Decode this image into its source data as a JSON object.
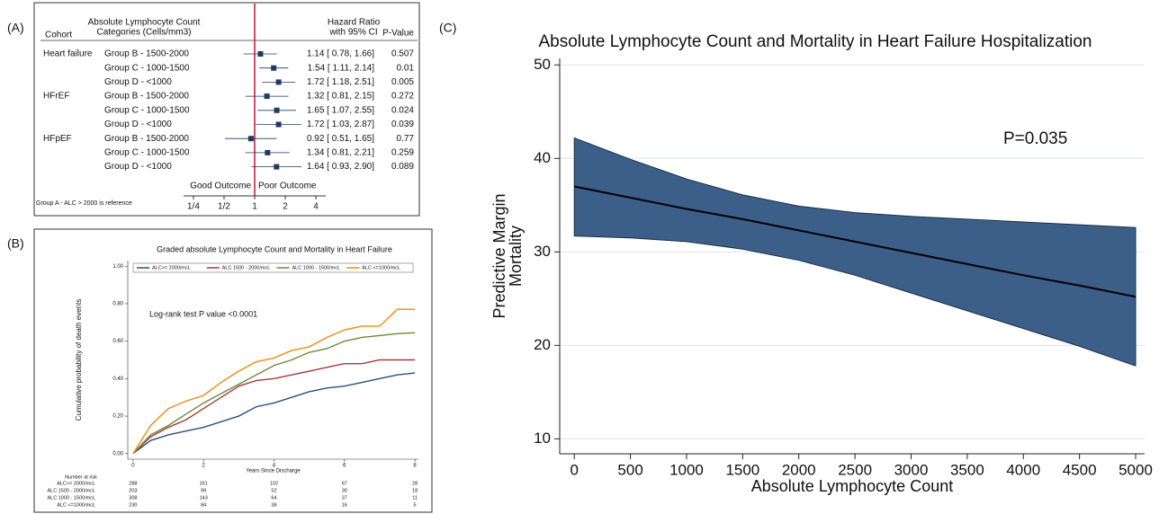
{
  "chart_data": [
    {
      "type": "forest",
      "panel": "(A)",
      "headers": {
        "cohort": "Cohort",
        "category_lines": [
          "Absolute Lymphocyte Count",
          "Categories (Cells/mm3)"
        ],
        "hr_lines": [
          "Hazard Ratio",
          "with 95% CI"
        ],
        "p": "P-Value"
      },
      "cohorts": [
        "Heart failure",
        null,
        null,
        "HFrEF",
        null,
        null,
        "HFpEF",
        null,
        null
      ],
      "categories": [
        "Group B - 1500-2000",
        "Group C - 1000-1500",
        "Group D - <1000",
        "Group B - 1500-2000",
        "Group C - 1000-1500",
        "Group D - <1000",
        "Group B - 1500-2000",
        "Group C - 1000-1500",
        "Group D - <1000"
      ],
      "values": [
        1.14,
        1.54,
        1.72,
        1.32,
        1.65,
        1.72,
        0.92,
        1.34,
        1.64
      ],
      "lower": [
        0.78,
        1.11,
        1.18,
        0.81,
        1.07,
        1.03,
        0.51,
        0.81,
        0.93
      ],
      "upper": [
        1.66,
        2.14,
        2.51,
        2.15,
        2.55,
        2.87,
        1.65,
        2.21,
        2.9
      ],
      "value_labels": [
        "1.14 [ 0.78, 1.66]",
        "1.54 [ 1.11, 2.14]",
        "1.72 [ 1.18, 2.51]",
        "1.32 [ 0.81, 2.15]",
        "1.65 [ 1.07, 2.55]",
        "1.72 [ 1.03, 2.87]",
        "0.92 [ 0.51, 1.65]",
        "1.34 [ 0.81, 2.21]",
        "1.64 [ 0.93, 2.90]"
      ],
      "p_values": [
        0.507,
        0.01,
        0.005,
        0.272,
        0.024,
        0.039,
        0.77,
        0.259,
        0.089
      ],
      "xscale": "log",
      "xlim": [
        0.2,
        5
      ],
      "xticks": [
        {
          "value": 0.25,
          "label": "1/4"
        },
        {
          "value": 0.5,
          "label": "1/2"
        },
        1,
        2,
        4
      ],
      "reference_line": 1,
      "color": "#1f3b63",
      "reference_color": "#c0143c",
      "left_label": "Good Outcome",
      "right_label": "Poor Outcome",
      "footnote": "Group A - ALC > 2000 is reference"
    },
    {
      "type": "line",
      "panel": "(B)",
      "title": "Graded absolute Lymphocyte Count and Mortality in Heart Failure",
      "y_label": "Cumulative probability of death events",
      "x_label": "Years Since Discharge",
      "annotation": "Log-rank test P value <0.0001",
      "x": [
        0,
        0.5,
        1,
        1.5,
        2,
        2.5,
        3,
        3.5,
        4,
        4.5,
        5,
        5.5,
        6,
        6.5,
        7,
        7.5,
        8
      ],
      "series": [
        {
          "name": "ALC>= 2000/mcL",
          "color": "#2b4f7e",
          "values": [
            0,
            0.07,
            0.1,
            0.12,
            0.14,
            0.17,
            0.2,
            0.25,
            0.27,
            0.3,
            0.33,
            0.35,
            0.36,
            0.38,
            0.4,
            0.42,
            0.43
          ]
        },
        {
          "name": "ALC 1500 - 2000/mcL",
          "color": "#a23b3b",
          "values": [
            0,
            0.09,
            0.14,
            0.18,
            0.24,
            0.3,
            0.36,
            0.39,
            0.4,
            0.42,
            0.44,
            0.46,
            0.48,
            0.48,
            0.5,
            0.5,
            0.5
          ]
        },
        {
          "name": "ALC 1000 - 1500/mcL",
          "color": "#6b8a35",
          "values": [
            0,
            0.1,
            0.15,
            0.21,
            0.27,
            0.32,
            0.37,
            0.42,
            0.47,
            0.5,
            0.54,
            0.56,
            0.6,
            0.62,
            0.63,
            0.64,
            0.645
          ]
        },
        {
          "name": "ALC <=1000/mcL",
          "color": "#f08a12",
          "values": [
            0,
            0.15,
            0.24,
            0.28,
            0.31,
            0.38,
            0.44,
            0.49,
            0.51,
            0.55,
            0.57,
            0.62,
            0.66,
            0.68,
            0.68,
            0.77,
            0.77
          ]
        }
      ],
      "xlim": [
        -0.15,
        8.1
      ],
      "xticks": [
        0,
        2,
        4,
        6,
        8
      ],
      "ylim": [
        -0.03,
        1.03
      ],
      "yticks": [
        {
          "value": 0,
          "label": "0.00"
        },
        {
          "value": 0.2,
          "label": "0.20"
        },
        {
          "value": 0.4,
          "label": "0.40"
        },
        {
          "value": 0.6,
          "label": "0.60"
        },
        {
          "value": 0.8,
          "label": "0.80"
        },
        {
          "value": 1,
          "label": "1.00"
        }
      ],
      "legend": "top",
      "risk_table": {
        "title": "Number at risk",
        "x": [
          0,
          2,
          4,
          6,
          8
        ],
        "rows": [
          [
            288,
            161,
            102,
            67,
            28
          ],
          [
            203,
            99,
            52,
            30,
            18
          ],
          [
            308,
            143,
            64,
            37,
            11
          ],
          [
            230,
            84,
            38,
            16,
            5
          ]
        ]
      }
    },
    {
      "type": "band",
      "panel": "(C)",
      "title": "Absolute Lymphocyte Count and Mortality in Heart Failure Hospitalization",
      "y_label_lines": [
        "Predictive Margin",
        "Mortality"
      ],
      "x_label": "Absolute Lymphocyte Count",
      "annotation": "P=0.035",
      "x": [
        0,
        500,
        1000,
        1500,
        2000,
        2500,
        3000,
        3500,
        4000,
        4500,
        5000
      ],
      "values": [
        37,
        35.8,
        34.6,
        33.5,
        32.3,
        31.1,
        29.9,
        28.7,
        27.5,
        26.4,
        25.2
      ],
      "lower": [
        31.7,
        31.5,
        31.1,
        30.3,
        29.1,
        27.5,
        25.6,
        23.7,
        21.8,
        19.9,
        17.8
      ],
      "upper": [
        42.2,
        39.9,
        37.8,
        36.1,
        34.9,
        34.2,
        33.8,
        33.5,
        33.2,
        32.9,
        32.6
      ],
      "color": "#000000",
      "band_color": "#3b5f89",
      "xlim": [
        -130,
        5080
      ],
      "xticks": [
        0,
        500,
        1000,
        1500,
        2000,
        2500,
        3000,
        3500,
        4000,
        4500,
        5000
      ],
      "ylim": [
        8.4,
        50.7
      ],
      "yticks": [
        10,
        20,
        30,
        40,
        50
      ],
      "grid": true
    }
  ]
}
